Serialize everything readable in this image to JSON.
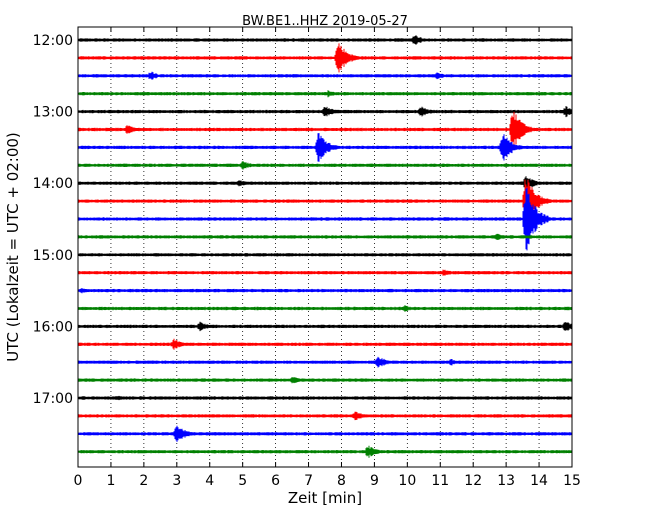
{
  "chart_data": {
    "type": "line",
    "title": "BW.BE1..HHZ 2019-05-27",
    "xlabel": "Zeit  [min]",
    "ylabel": "UTC (Lokalzeit = UTC + 02:00)",
    "xlim": [
      0,
      15
    ],
    "x_ticks": [
      0,
      1,
      2,
      3,
      4,
      5,
      6,
      7,
      8,
      9,
      10,
      11,
      12,
      13,
      14,
      15
    ],
    "y_tick_labels": [
      "12:00",
      "13:00",
      "14:00",
      "15:00",
      "16:00",
      "17:00"
    ],
    "grid": "vertical-dotted",
    "trace_colors": [
      "#000000",
      "#ff0000",
      "#0000ff",
      "#008000"
    ],
    "trace_count": 24,
    "trace_interval_minutes": 15,
    "events": [
      {
        "trace": 0,
        "minute": 10.2,
        "amp": 6
      },
      {
        "trace": 1,
        "minute": 7.9,
        "amp": 18
      },
      {
        "trace": 2,
        "minute": 2.2,
        "amp": 5
      },
      {
        "trace": 2,
        "minute": 10.9,
        "amp": 4
      },
      {
        "trace": 3,
        "minute": 7.6,
        "amp": 4
      },
      {
        "trace": 4,
        "minute": 7.5,
        "amp": 6
      },
      {
        "trace": 4,
        "minute": 10.4,
        "amp": 6
      },
      {
        "trace": 4,
        "minute": 14.8,
        "amp": 6
      },
      {
        "trace": 5,
        "minute": 13.2,
        "amp": 22
      },
      {
        "trace": 5,
        "minute": 1.5,
        "amp": 5
      },
      {
        "trace": 6,
        "minute": 7.3,
        "amp": 16
      },
      {
        "trace": 6,
        "minute": 12.9,
        "amp": 16
      },
      {
        "trace": 7,
        "minute": 5.0,
        "amp": 5
      },
      {
        "trace": 8,
        "minute": 4.9,
        "amp": 4
      },
      {
        "trace": 8,
        "minute": 13.6,
        "amp": 8
      },
      {
        "trace": 9,
        "minute": 13.6,
        "amp": 28
      },
      {
        "trace": 10,
        "minute": 13.6,
        "amp": 38
      },
      {
        "trace": 11,
        "minute": 12.7,
        "amp": 4
      },
      {
        "trace": 13,
        "minute": 11.1,
        "amp": 4
      },
      {
        "trace": 14,
        "minute": 0.1,
        "amp": 3
      },
      {
        "trace": 15,
        "minute": 9.9,
        "amp": 4
      },
      {
        "trace": 16,
        "minute": 3.7,
        "amp": 5
      },
      {
        "trace": 16,
        "minute": 14.8,
        "amp": 6
      },
      {
        "trace": 17,
        "minute": 2.9,
        "amp": 6
      },
      {
        "trace": 18,
        "minute": 9.1,
        "amp": 7
      },
      {
        "trace": 18,
        "minute": 11.3,
        "amp": 4
      },
      {
        "trace": 19,
        "minute": 6.5,
        "amp": 4
      },
      {
        "trace": 20,
        "minute": 1.2,
        "amp": 3
      },
      {
        "trace": 21,
        "minute": 8.4,
        "amp": 5
      },
      {
        "trace": 22,
        "minute": 3.0,
        "amp": 10
      },
      {
        "trace": 23,
        "minute": 8.8,
        "amp": 7
      }
    ]
  }
}
